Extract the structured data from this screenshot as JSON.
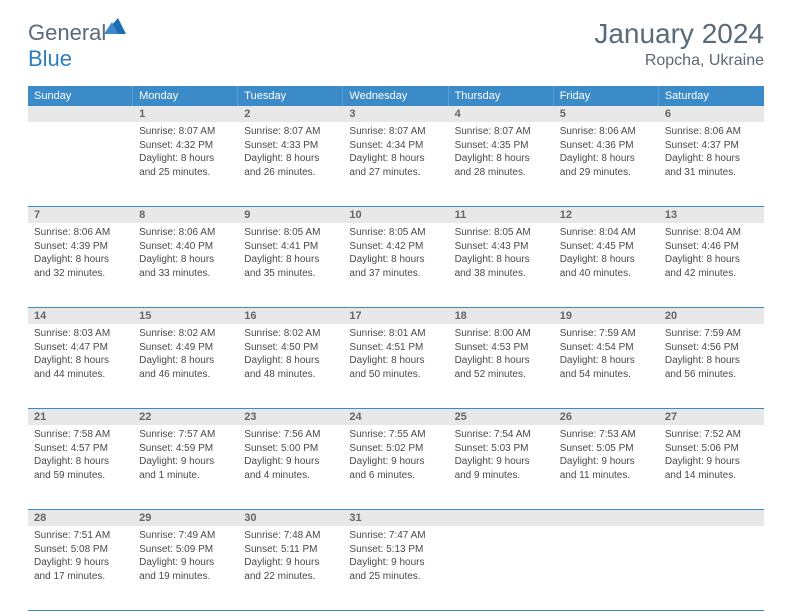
{
  "logo": {
    "text_general": "General",
    "text_blue": "Blue",
    "triangle_color": "#1f6db3"
  },
  "header": {
    "month_title": "January 2024",
    "location": "Ropcha, Ukraine"
  },
  "colors": {
    "header_bg": "#3b8bc9",
    "header_text": "#ffffff",
    "daynum_bg": "#e8e8e8",
    "daynum_text": "#666666",
    "body_text": "#4a4a4a",
    "rule": "#3b8bc9"
  },
  "weekdays": [
    "Sunday",
    "Monday",
    "Tuesday",
    "Wednesday",
    "Thursday",
    "Friday",
    "Saturday"
  ],
  "weeks": [
    [
      {
        "n": "",
        "t": ""
      },
      {
        "n": "1",
        "t": "Sunrise: 8:07 AM\nSunset: 4:32 PM\nDaylight: 8 hours\nand 25 minutes."
      },
      {
        "n": "2",
        "t": "Sunrise: 8:07 AM\nSunset: 4:33 PM\nDaylight: 8 hours\nand 26 minutes."
      },
      {
        "n": "3",
        "t": "Sunrise: 8:07 AM\nSunset: 4:34 PM\nDaylight: 8 hours\nand 27 minutes."
      },
      {
        "n": "4",
        "t": "Sunrise: 8:07 AM\nSunset: 4:35 PM\nDaylight: 8 hours\nand 28 minutes."
      },
      {
        "n": "5",
        "t": "Sunrise: 8:06 AM\nSunset: 4:36 PM\nDaylight: 8 hours\nand 29 minutes."
      },
      {
        "n": "6",
        "t": "Sunrise: 8:06 AM\nSunset: 4:37 PM\nDaylight: 8 hours\nand 31 minutes."
      }
    ],
    [
      {
        "n": "7",
        "t": "Sunrise: 8:06 AM\nSunset: 4:39 PM\nDaylight: 8 hours\nand 32 minutes."
      },
      {
        "n": "8",
        "t": "Sunrise: 8:06 AM\nSunset: 4:40 PM\nDaylight: 8 hours\nand 33 minutes."
      },
      {
        "n": "9",
        "t": "Sunrise: 8:05 AM\nSunset: 4:41 PM\nDaylight: 8 hours\nand 35 minutes."
      },
      {
        "n": "10",
        "t": "Sunrise: 8:05 AM\nSunset: 4:42 PM\nDaylight: 8 hours\nand 37 minutes."
      },
      {
        "n": "11",
        "t": "Sunrise: 8:05 AM\nSunset: 4:43 PM\nDaylight: 8 hours\nand 38 minutes."
      },
      {
        "n": "12",
        "t": "Sunrise: 8:04 AM\nSunset: 4:45 PM\nDaylight: 8 hours\nand 40 minutes."
      },
      {
        "n": "13",
        "t": "Sunrise: 8:04 AM\nSunset: 4:46 PM\nDaylight: 8 hours\nand 42 minutes."
      }
    ],
    [
      {
        "n": "14",
        "t": "Sunrise: 8:03 AM\nSunset: 4:47 PM\nDaylight: 8 hours\nand 44 minutes."
      },
      {
        "n": "15",
        "t": "Sunrise: 8:02 AM\nSunset: 4:49 PM\nDaylight: 8 hours\nand 46 minutes."
      },
      {
        "n": "16",
        "t": "Sunrise: 8:02 AM\nSunset: 4:50 PM\nDaylight: 8 hours\nand 48 minutes."
      },
      {
        "n": "17",
        "t": "Sunrise: 8:01 AM\nSunset: 4:51 PM\nDaylight: 8 hours\nand 50 minutes."
      },
      {
        "n": "18",
        "t": "Sunrise: 8:00 AM\nSunset: 4:53 PM\nDaylight: 8 hours\nand 52 minutes."
      },
      {
        "n": "19",
        "t": "Sunrise: 7:59 AM\nSunset: 4:54 PM\nDaylight: 8 hours\nand 54 minutes."
      },
      {
        "n": "20",
        "t": "Sunrise: 7:59 AM\nSunset: 4:56 PM\nDaylight: 8 hours\nand 56 minutes."
      }
    ],
    [
      {
        "n": "21",
        "t": "Sunrise: 7:58 AM\nSunset: 4:57 PM\nDaylight: 8 hours\nand 59 minutes."
      },
      {
        "n": "22",
        "t": "Sunrise: 7:57 AM\nSunset: 4:59 PM\nDaylight: 9 hours\nand 1 minute."
      },
      {
        "n": "23",
        "t": "Sunrise: 7:56 AM\nSunset: 5:00 PM\nDaylight: 9 hours\nand 4 minutes."
      },
      {
        "n": "24",
        "t": "Sunrise: 7:55 AM\nSunset: 5:02 PM\nDaylight: 9 hours\nand 6 minutes."
      },
      {
        "n": "25",
        "t": "Sunrise: 7:54 AM\nSunset: 5:03 PM\nDaylight: 9 hours\nand 9 minutes."
      },
      {
        "n": "26",
        "t": "Sunrise: 7:53 AM\nSunset: 5:05 PM\nDaylight: 9 hours\nand 11 minutes."
      },
      {
        "n": "27",
        "t": "Sunrise: 7:52 AM\nSunset: 5:06 PM\nDaylight: 9 hours\nand 14 minutes."
      }
    ],
    [
      {
        "n": "28",
        "t": "Sunrise: 7:51 AM\nSunset: 5:08 PM\nDaylight: 9 hours\nand 17 minutes."
      },
      {
        "n": "29",
        "t": "Sunrise: 7:49 AM\nSunset: 5:09 PM\nDaylight: 9 hours\nand 19 minutes."
      },
      {
        "n": "30",
        "t": "Sunrise: 7:48 AM\nSunset: 5:11 PM\nDaylight: 9 hours\nand 22 minutes."
      },
      {
        "n": "31",
        "t": "Sunrise: 7:47 AM\nSunset: 5:13 PM\nDaylight: 9 hours\nand 25 minutes."
      },
      {
        "n": "",
        "t": ""
      },
      {
        "n": "",
        "t": ""
      },
      {
        "n": "",
        "t": ""
      }
    ]
  ]
}
